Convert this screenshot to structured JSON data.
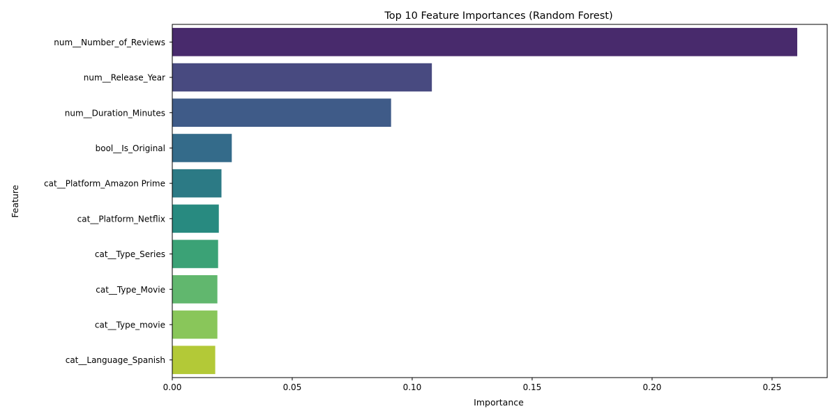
{
  "chart_data": {
    "type": "bar",
    "orientation": "horizontal",
    "title": "Top 10 Feature Importances (Random Forest)",
    "xlabel": "Importance",
    "ylabel": "Feature",
    "xlim": [
      0,
      0.273
    ],
    "x_ticks": [
      0.0,
      0.05,
      0.1,
      0.15,
      0.2,
      0.25
    ],
    "x_tick_labels": [
      "0.00",
      "0.05",
      "0.10",
      "0.15",
      "0.20",
      "0.25"
    ],
    "grid": false,
    "categories": [
      "num__Number_of_Reviews",
      "num__Release_Year",
      "num__Duration_Minutes",
      "bool__Is_Original",
      "cat__Platform_Amazon Prime",
      "cat__Platform_Netflix",
      "cat__Type_Series",
      "cat__Type_Movie",
      "cat__Type_movie",
      "cat__Language_Spanish"
    ],
    "values": [
      0.2605,
      0.1082,
      0.0912,
      0.0248,
      0.0205,
      0.0194,
      0.0191,
      0.0188,
      0.0188,
      0.0179
    ],
    "colors": [
      "#482a6c",
      "#484a80",
      "#3f5b88",
      "#346b8a",
      "#2c7a85",
      "#288a80",
      "#3ba276",
      "#61b76e",
      "#89c65a",
      "#b3c937"
    ]
  }
}
